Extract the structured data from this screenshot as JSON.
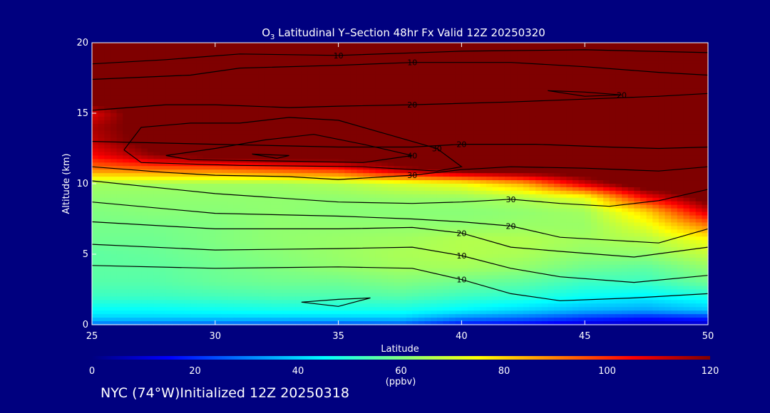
{
  "title": {
    "prefix": "O",
    "subscript": "3",
    "rest": " Latitudinal Y–Section 48hr  Fx Valid 12Z 20250320"
  },
  "footer_label": "NYC (74°W)Initialized 12Z 20250318",
  "colors": {
    "background": "#00007f",
    "frame": "#ffffff",
    "contour": "#000000"
  },
  "chart_data": {
    "type": "heatmap",
    "xlabel": "Latitude",
    "ylabel": "Altitude (km)",
    "xlim": [
      25,
      50
    ],
    "ylim": [
      0,
      20
    ],
    "x_ticks": [
      "25",
      "30",
      "35",
      "40",
      "45",
      "50"
    ],
    "y_ticks": [
      "0",
      "5",
      "10",
      "15",
      "20"
    ],
    "colorbar": {
      "min": 0,
      "max": 120,
      "ticks": [
        "0",
        "20",
        "40",
        "60",
        "80",
        "100",
        "120"
      ],
      "unit_label": "(ppbv)",
      "colormap": [
        "#00007f",
        "#0000ff",
        "#0080ff",
        "#00ffff",
        "#80ff80",
        "#ffff00",
        "#ff8000",
        "#ff0000",
        "#7f0000"
      ]
    },
    "field": {
      "latitudes": [
        25,
        27.5,
        30,
        32.5,
        35,
        37.5,
        40,
        42.5,
        45,
        47.5,
        50
      ],
      "altitudes": [
        0,
        0.5,
        1,
        2,
        3,
        4,
        5,
        6,
        7,
        8,
        9,
        10,
        11,
        12,
        13,
        14,
        15,
        16,
        18,
        20
      ],
      "ozone_ppbv": [
        [
          28,
          27,
          26,
          25,
          24,
          25,
          16,
          14,
          10,
          8,
          8
        ],
        [
          40,
          40,
          40,
          40,
          40,
          40,
          32,
          28,
          22,
          18,
          20
        ],
        [
          45,
          45,
          46,
          47,
          47,
          47,
          44,
          40,
          36,
          34,
          38
        ],
        [
          52,
          52,
          53,
          54,
          54,
          55,
          52,
          50,
          46,
          44,
          48
        ],
        [
          55,
          55,
          57,
          58,
          58,
          60,
          58,
          56,
          52,
          52,
          58
        ],
        [
          56,
          56,
          58,
          60,
          62,
          64,
          64,
          62,
          58,
          56,
          62
        ],
        [
          56,
          57,
          59,
          61,
          63,
          65,
          66,
          65,
          62,
          62,
          68
        ],
        [
          58,
          58,
          60,
          62,
          63,
          64,
          66,
          66,
          64,
          66,
          74
        ],
        [
          59,
          59,
          60,
          62,
          62,
          62,
          62,
          63,
          63,
          72,
          90
        ],
        [
          60,
          61,
          61,
          62,
          61,
          61,
          61,
          62,
          64,
          80,
          110
        ],
        [
          62,
          62,
          62,
          62,
          62,
          63,
          63,
          66,
          72,
          105,
          125
        ],
        [
          64,
          64,
          64,
          64,
          66,
          70,
          74,
          85,
          110,
          130,
          130
        ],
        [
          90,
          92,
          92,
          96,
          100,
          115,
          125,
          130,
          130,
          130,
          130
        ],
        [
          105,
          118,
          125,
          130,
          130,
          130,
          130,
          130,
          130,
          130,
          130
        ],
        [
          112,
          125,
          130,
          130,
          130,
          130,
          130,
          130,
          130,
          130,
          130
        ],
        [
          115,
          125,
          130,
          130,
          130,
          130,
          130,
          130,
          130,
          130,
          130
        ],
        [
          108,
          130,
          130,
          130,
          130,
          130,
          130,
          130,
          130,
          130,
          130
        ],
        [
          130,
          130,
          130,
          130,
          130,
          130,
          130,
          130,
          130,
          130,
          130
        ],
        [
          130,
          130,
          130,
          130,
          130,
          130,
          130,
          130,
          130,
          130,
          130
        ],
        [
          130,
          130,
          130,
          130,
          130,
          130,
          130,
          130,
          130,
          130,
          130
        ]
      ]
    },
    "contours": [
      {
        "label": "10",
        "points": [
          [
            25,
            4.2
          ],
          [
            30,
            4.0
          ],
          [
            35,
            4.1
          ],
          [
            38,
            4.0
          ],
          [
            40,
            3.2
          ],
          [
            42,
            2.2
          ],
          [
            44,
            1.7
          ],
          [
            47,
            1.9
          ],
          [
            50,
            2.2
          ]
        ]
      },
      {
        "label": "10",
        "points": [
          [
            25,
            5.7
          ],
          [
            30,
            5.3
          ],
          [
            35,
            5.4
          ],
          [
            38,
            5.5
          ],
          [
            40,
            4.9
          ],
          [
            42,
            4.0
          ],
          [
            44,
            3.4
          ],
          [
            47,
            3.0
          ],
          [
            50,
            3.5
          ]
        ]
      },
      {
        "label": "20",
        "points": [
          [
            25,
            7.3
          ],
          [
            30,
            6.8
          ],
          [
            35,
            6.8
          ],
          [
            38,
            6.9
          ],
          [
            40,
            6.5
          ],
          [
            42,
            5.5
          ],
          [
            44,
            5.2
          ],
          [
            47,
            4.8
          ],
          [
            50,
            5.5
          ]
        ]
      },
      {
        "label": "20",
        "points": [
          [
            25,
            8.7
          ],
          [
            30,
            7.9
          ],
          [
            35,
            7.7
          ],
          [
            38,
            7.5
          ],
          [
            40,
            7.3
          ],
          [
            42,
            7.0
          ],
          [
            44,
            6.2
          ],
          [
            46,
            6.0
          ],
          [
            48,
            5.8
          ],
          [
            50,
            6.8
          ]
        ]
      },
      {
        "label": "30",
        "points": [
          [
            25,
            10.2
          ],
          [
            30,
            9.3
          ],
          [
            35,
            8.7
          ],
          [
            38,
            8.6
          ],
          [
            40,
            8.7
          ],
          [
            42,
            8.9
          ],
          [
            44,
            8.6
          ],
          [
            46,
            8.4
          ],
          [
            48,
            8.8
          ],
          [
            50,
            9.6
          ]
        ]
      },
      {
        "label": "30",
        "points": [
          [
            25,
            11.2
          ],
          [
            28,
            10.8
          ],
          [
            30,
            10.6
          ],
          [
            33,
            10.5
          ],
          [
            35,
            10.3
          ],
          [
            38,
            10.6
          ],
          [
            40,
            11.0
          ],
          [
            42,
            11.2
          ],
          [
            45,
            11.1
          ],
          [
            48,
            10.9
          ],
          [
            50,
            11.2
          ]
        ]
      },
      {
        "label": "20",
        "points": [
          [
            25,
            13.0
          ],
          [
            30,
            12.8
          ],
          [
            35,
            12.6
          ],
          [
            38,
            12.6
          ],
          [
            40,
            12.8
          ],
          [
            43,
            12.8
          ],
          [
            46,
            12.6
          ],
          [
            48,
            12.5
          ],
          [
            50,
            12.6
          ]
        ]
      },
      {
        "label": "20",
        "points": [
          [
            25,
            15.2
          ],
          [
            28,
            15.6
          ],
          [
            30,
            15.6
          ],
          [
            33,
            15.4
          ],
          [
            35,
            15.5
          ],
          [
            38,
            15.6
          ],
          [
            42,
            15.8
          ],
          [
            45,
            16.0
          ],
          [
            48,
            16.2
          ],
          [
            50,
            16.4
          ]
        ]
      },
      {
        "label": "10",
        "points": [
          [
            25,
            17.4
          ],
          [
            29,
            17.7
          ],
          [
            31,
            18.2
          ],
          [
            35,
            18.4
          ],
          [
            38,
            18.6
          ],
          [
            42,
            18.6
          ],
          [
            45,
            18.3
          ],
          [
            48,
            17.9
          ],
          [
            50,
            17.7
          ]
        ]
      },
      {
        "label": "10",
        "points": [
          [
            25,
            18.5
          ],
          [
            28,
            18.8
          ],
          [
            31,
            19.2
          ],
          [
            35,
            19.1
          ],
          [
            40,
            19.4
          ],
          [
            45,
            19.5
          ],
          [
            50,
            19.3
          ]
        ]
      },
      {
        "label": "40",
        "points": [
          [
            28,
            12.0
          ],
          [
            30,
            12.5
          ],
          [
            32,
            13.1
          ],
          [
            34,
            13.5
          ],
          [
            36,
            12.8
          ],
          [
            38,
            12.0
          ],
          [
            36,
            11.5
          ],
          [
            33,
            11.6
          ],
          [
            29,
            11.7
          ],
          [
            28,
            12.0
          ]
        ]
      },
      {
        "label": "30",
        "points": [
          [
            26.3,
            12.4
          ],
          [
            27,
            14.0
          ],
          [
            29,
            14.3
          ],
          [
            31,
            14.3
          ],
          [
            33,
            14.7
          ],
          [
            35,
            14.5
          ],
          [
            37,
            13.5
          ],
          [
            39,
            12.5
          ],
          [
            40,
            11.2
          ],
          [
            39,
            10.9
          ],
          [
            36,
            11.2
          ],
          [
            31,
            11.3
          ],
          [
            27,
            11.5
          ],
          [
            26.3,
            12.4
          ]
        ]
      },
      {
        "label": "20",
        "points": [
          [
            43.5,
            16.6
          ],
          [
            45,
            16.5
          ],
          [
            46.5,
            16.3
          ],
          [
            45,
            16.2
          ],
          [
            43.5,
            16.6
          ]
        ]
      },
      {
        "label": "",
        "points": [
          [
            33.5,
            1.6
          ],
          [
            35,
            1.8
          ],
          [
            36.3,
            1.9
          ],
          [
            35,
            1.3
          ],
          [
            33.5,
            1.6
          ]
        ]
      },
      {
        "label": "",
        "points": [
          [
            31.5,
            12.1
          ],
          [
            33,
            12.0
          ],
          [
            32.5,
            11.8
          ],
          [
            31.5,
            12.1
          ]
        ]
      }
    ]
  }
}
